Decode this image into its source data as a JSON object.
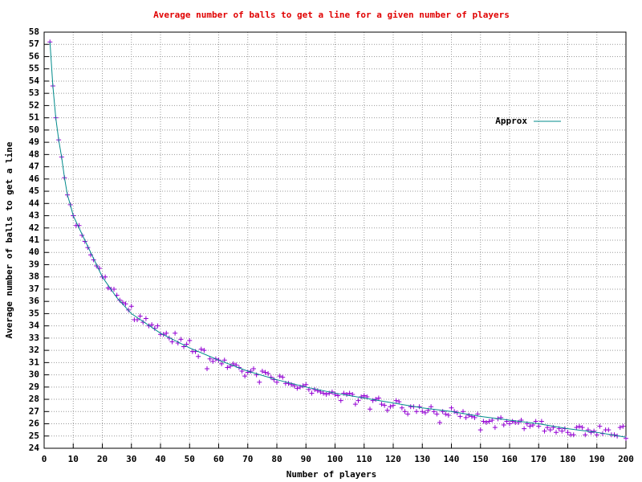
{
  "chart_data": {
    "type": "scatter",
    "title": "Average number of balls to get a line for a given number of players",
    "x_label": "Number of players",
    "y_label": "Average number of balls to get a line",
    "x": [
      2,
      3,
      4,
      5,
      6,
      7,
      8,
      9,
      10,
      11,
      12,
      13,
      14,
      15,
      16,
      17,
      18,
      19,
      20,
      21,
      22,
      23,
      24,
      25,
      26,
      27,
      28,
      29,
      30,
      31,
      32,
      33,
      34,
      35,
      36,
      37,
      38,
      39,
      40,
      41,
      42,
      43,
      44,
      45,
      46,
      47,
      48,
      49,
      50,
      51,
      52,
      53,
      54,
      55,
      56,
      57,
      58,
      59,
      60,
      61,
      62,
      63,
      64,
      65,
      66,
      67,
      68,
      69,
      70,
      71,
      72,
      73,
      74,
      75,
      76,
      77,
      78,
      79,
      80,
      81,
      82,
      83,
      84,
      85,
      86,
      87,
      88,
      89,
      90,
      91,
      92,
      93,
      94,
      95,
      96,
      97,
      98,
      99,
      100,
      101,
      102,
      103,
      104,
      105,
      106,
      107,
      108,
      109,
      110,
      111,
      112,
      113,
      114,
      115,
      116,
      117,
      118,
      119,
      120,
      121,
      122,
      123,
      124,
      125,
      126,
      127,
      128,
      129,
      130,
      131,
      132,
      133,
      134,
      135,
      136,
      137,
      138,
      139,
      140,
      141,
      142,
      143,
      144,
      145,
      146,
      147,
      148,
      149,
      150,
      151,
      152,
      153,
      154,
      155,
      156,
      157,
      158,
      159,
      160,
      161,
      162,
      163,
      164,
      165,
      166,
      167,
      168,
      169,
      170,
      171,
      172,
      173,
      174,
      175,
      176,
      177,
      178,
      179,
      180,
      181,
      182,
      183,
      184,
      185,
      186,
      187,
      188,
      189,
      190,
      191,
      192,
      193,
      194,
      195,
      196,
      197,
      198,
      199,
      200
    ],
    "series": [
      {
        "color": "#9400d3",
        "values": [
          57.2,
          53.6,
          51.0,
          49.2,
          47.8,
          46.1,
          44.7,
          43.9,
          43.0,
          42.2,
          42.2,
          41.4,
          40.9,
          40.4,
          39.8,
          39.4,
          38.9,
          38.7,
          38.0,
          38.0,
          37.1,
          37.0,
          37.0,
          36.5,
          36.1,
          35.9,
          35.8,
          35.3,
          35.6,
          34.5,
          34.5,
          34.8,
          34.3,
          34.6,
          34.0,
          34.1,
          33.8,
          34.0,
          33.3,
          33.3,
          33.4,
          33.0,
          32.7,
          33.4,
          32.6,
          32.9,
          32.3,
          32.5,
          32.8,
          31.9,
          31.9,
          31.5,
          32.1,
          32.0,
          30.5,
          31.3,
          31.1,
          31.3,
          31.2,
          30.9,
          31.2,
          30.6,
          30.7,
          30.9,
          30.8,
          30.6,
          30.3,
          29.9,
          30.2,
          30.3,
          30.5,
          30.0,
          29.4,
          30.3,
          30.2,
          30.1,
          29.8,
          29.6,
          29.4,
          29.9,
          29.8,
          29.3,
          29.3,
          29.2,
          29.1,
          28.9,
          29.0,
          29.1,
          29.2,
          28.8,
          28.5,
          28.8,
          28.7,
          28.6,
          28.5,
          28.4,
          28.5,
          28.6,
          28.4,
          28.3,
          27.9,
          28.5,
          28.4,
          28.5,
          28.4,
          27.6,
          27.9,
          28.2,
          28.3,
          28.2,
          27.2,
          27.9,
          28.0,
          28.1,
          27.6,
          27.5,
          27.1,
          27.4,
          27.5,
          27.9,
          27.8,
          27.3,
          27.0,
          26.8,
          27.4,
          27.4,
          27.0,
          27.4,
          27.0,
          26.9,
          27.1,
          27.4,
          27.0,
          26.8,
          26.1,
          27.0,
          26.8,
          26.7,
          27.3,
          27.0,
          26.9,
          26.6,
          27.0,
          26.5,
          26.7,
          26.6,
          26.5,
          26.8,
          25.5,
          26.2,
          26.1,
          26.2,
          26.3,
          25.7,
          26.4,
          26.5,
          25.9,
          26.2,
          26.0,
          26.2,
          26.1,
          26.1,
          26.3,
          25.6,
          26.0,
          25.8,
          25.9,
          26.2,
          25.8,
          26.2,
          25.4,
          25.7,
          25.5,
          25.7,
          25.3,
          25.6,
          25.4,
          25.6,
          25.3,
          25.1,
          25.1,
          25.7,
          25.8,
          25.7,
          25.1,
          25.5,
          25.3,
          25.4,
          25.1,
          25.8,
          25.2,
          25.5,
          25.5,
          25.1,
          25.1,
          25.0,
          25.7,
          25.8,
          24.8
        ]
      },
      {
        "name": "Approx",
        "color": "#008b8b",
        "x": [
          2,
          3,
          4,
          5,
          6,
          7,
          8,
          9,
          10,
          12,
          15,
          20,
          25,
          30,
          40,
          50,
          60,
          70,
          80,
          90,
          100,
          110,
          120,
          130,
          140,
          150,
          160,
          170,
          180,
          190,
          200
        ],
        "values": [
          57.2,
          53.6,
          51.0,
          49.2,
          47.8,
          46.1,
          44.7,
          43.9,
          43.0,
          42.0,
          40.5,
          38.0,
          36.3,
          35.0,
          33.4,
          32.2,
          31.2,
          30.3,
          29.6,
          29.0,
          28.5,
          28.1,
          27.7,
          27.3,
          27.0,
          26.6,
          26.3,
          26.0,
          25.6,
          25.3,
          24.9
        ]
      }
    ],
    "xlim": [
      0,
      200
    ],
    "xticks": [
      0,
      10,
      20,
      30,
      40,
      50,
      60,
      70,
      80,
      90,
      100,
      110,
      120,
      130,
      140,
      150,
      160,
      170,
      180,
      190,
      200
    ],
    "ylim": [
      24,
      58
    ],
    "yticks": [
      24,
      25,
      26,
      27,
      28,
      29,
      30,
      31,
      32,
      33,
      34,
      35,
      36,
      37,
      38,
      39,
      40,
      41,
      42,
      43,
      44,
      45,
      46,
      47,
      48,
      49,
      50,
      51,
      52,
      53,
      54,
      55,
      56,
      57,
      58
    ],
    "grid": true,
    "legend": "upper right"
  }
}
